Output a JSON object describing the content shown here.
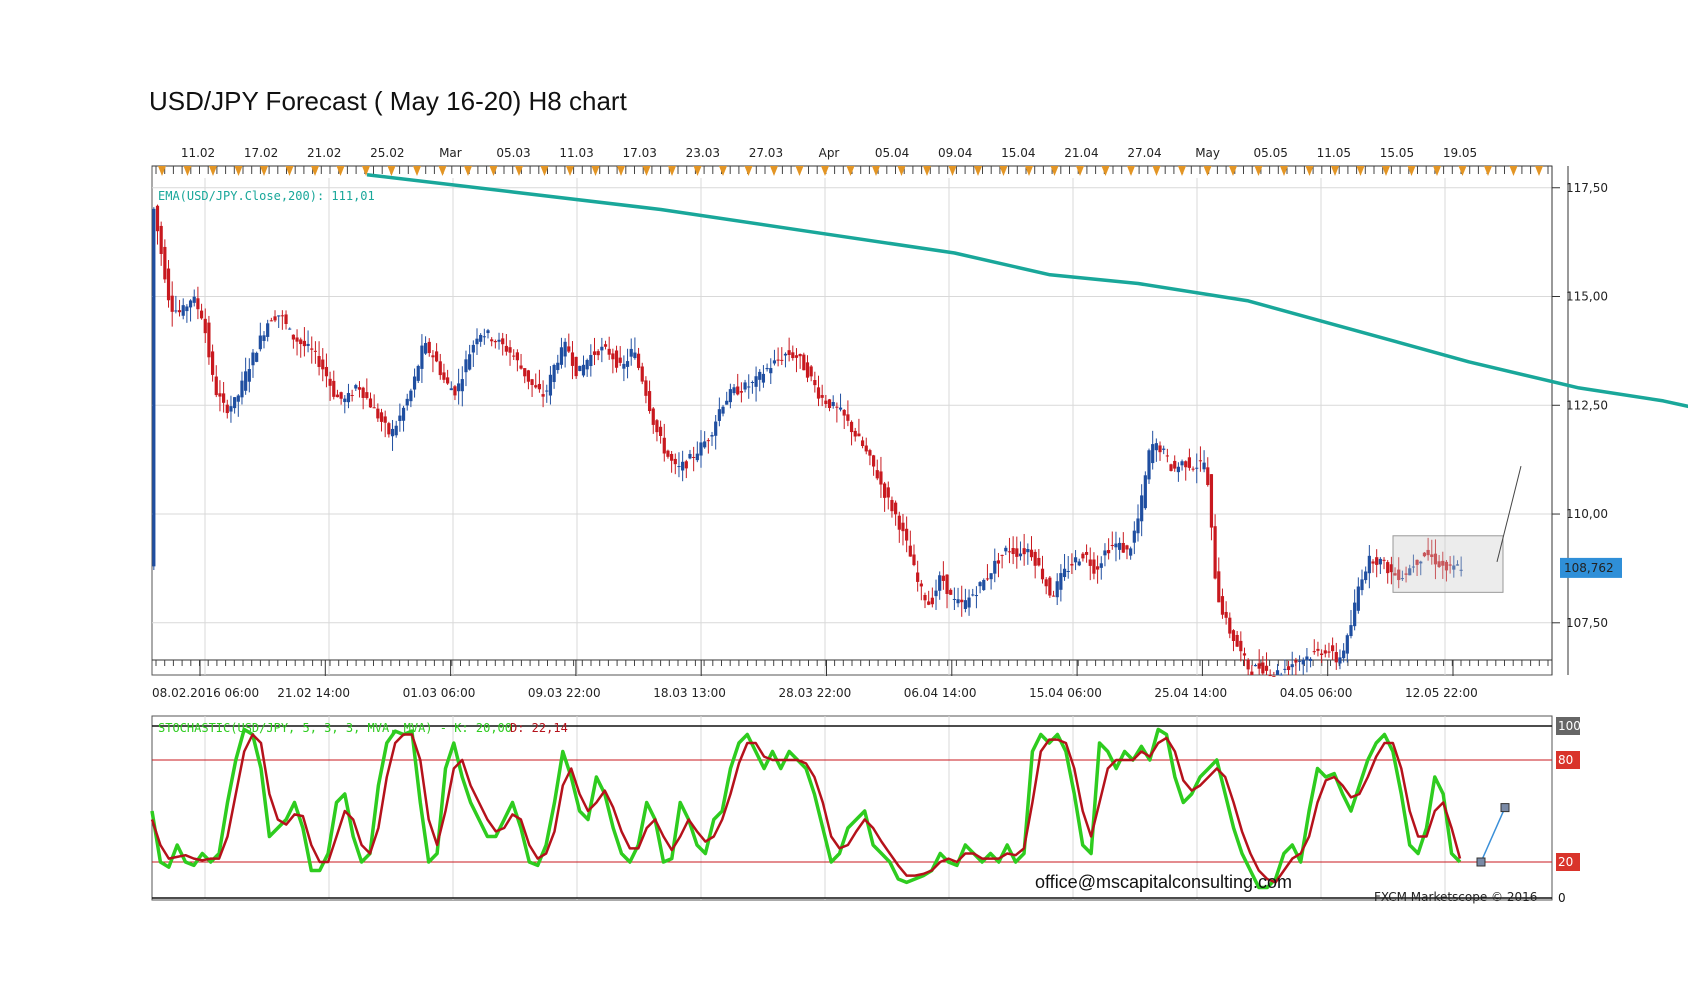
{
  "title": "USD/JPY Forecast ( May 16-20) H8 chart",
  "top_axis_labels": [
    "11.02",
    "17.02",
    "21.02",
    "25.02",
    "Mar",
    "05.03",
    "11.03",
    "17.03",
    "23.03",
    "27.03",
    "Apr",
    "05.04",
    "09.04",
    "15.04",
    "21.04",
    "27.04",
    "May",
    "05.05",
    "11.05",
    "15.05",
    "19.05"
  ],
  "bottom_axis_labels": [
    "08.02.2016 06:00",
    "21.02 14:00",
    "01.03 06:00",
    "09.03 22:00",
    "18.03 13:00",
    "28.03 22:00",
    "06.04 14:00",
    "15.04 06:00",
    "25.04 14:00",
    "04.05 06:00",
    "12.05 22:00"
  ],
  "price_ticks": [
    "117,50",
    "115,00",
    "112,50",
    "110,00",
    "107,50"
  ],
  "current_price": "108,762",
  "ema_label": "EMA(USD/JPY.Close,200): 111,01",
  "stoch_label_main": "STOCHASTIC(USD/JPY, 5, 3, 3, MVA, MVA) - K: 20,00",
  "stoch_label_d": "D: 22,14",
  "stoch_levels": [
    "100",
    "80",
    "20",
    "0"
  ],
  "email": "office@mscapitalconsulting.com",
  "credit": "FXCM Marketscope © 2016",
  "colors": {
    "bull": "#1f4ea0",
    "bear": "#c8191f",
    "ema": "#19a79a",
    "stoch_k": "#2ecc1f",
    "stoch_d": "#b5121b",
    "price_box": "#2f8fd8"
  },
  "chart_data": [
    {
      "type": "candlestick",
      "title": "USD/JPY Forecast ( May 16-20) H8 chart",
      "ylim": [
        106.3,
        118.0
      ],
      "price_path": [
        [
          0,
          117.3
        ],
        [
          3,
          115.8
        ],
        [
          5,
          114.8
        ],
        [
          8,
          114.6
        ],
        [
          11,
          115.0
        ],
        [
          14,
          114.5
        ],
        [
          17,
          112.9
        ],
        [
          20,
          112.4
        ],
        [
          23,
          112.6
        ],
        [
          26,
          113.3
        ],
        [
          29,
          113.9
        ],
        [
          32,
          114.5
        ],
        [
          35,
          114.6
        ],
        [
          38,
          114.1
        ],
        [
          41,
          113.9
        ],
        [
          44,
          113.7
        ],
        [
          47,
          113.3
        ],
        [
          50,
          112.7
        ],
        [
          53,
          112.6
        ],
        [
          56,
          113.0
        ],
        [
          59,
          112.6
        ],
        [
          62,
          112.2
        ],
        [
          65,
          111.8
        ],
        [
          68,
          112.3
        ],
        [
          71,
          112.9
        ],
        [
          74,
          113.9
        ],
        [
          77,
          113.6
        ],
        [
          80,
          113.0
        ],
        [
          83,
          112.8
        ],
        [
          86,
          113.6
        ],
        [
          89,
          114.2
        ],
        [
          92,
          114.1
        ],
        [
          95,
          113.9
        ],
        [
          98,
          113.7
        ],
        [
          101,
          113.3
        ],
        [
          104,
          112.9
        ],
        [
          107,
          112.7
        ],
        [
          110,
          113.5
        ],
        [
          113,
          113.9
        ],
        [
          116,
          113.2
        ],
        [
          119,
          113.6
        ],
        [
          122,
          113.8
        ],
        [
          125,
          113.7
        ],
        [
          128,
          113.3
        ],
        [
          131,
          113.8
        ],
        [
          134,
          113.0
        ],
        [
          137,
          112.0
        ],
        [
          140,
          111.4
        ],
        [
          143,
          111.0
        ],
        [
          146,
          111.2
        ],
        [
          149,
          111.5
        ],
        [
          152,
          111.8
        ],
        [
          155,
          112.5
        ],
        [
          158,
          112.8
        ],
        [
          161,
          112.9
        ],
        [
          164,
          113.0
        ],
        [
          167,
          113.3
        ],
        [
          170,
          113.5
        ],
        [
          173,
          113.7
        ],
        [
          176,
          113.6
        ],
        [
          179,
          113.2
        ],
        [
          182,
          112.7
        ],
        [
          185,
          112.5
        ],
        [
          188,
          112.3
        ],
        [
          191,
          111.9
        ],
        [
          194,
          111.5
        ],
        [
          197,
          111.0
        ],
        [
          200,
          110.4
        ],
        [
          203,
          109.9
        ],
        [
          206,
          109.2
        ],
        [
          209,
          108.3
        ],
        [
          212,
          107.9
        ],
        [
          215,
          108.6
        ],
        [
          218,
          108.0
        ],
        [
          221,
          107.9
        ],
        [
          224,
          108.2
        ],
        [
          227,
          108.5
        ],
        [
          230,
          108.9
        ],
        [
          233,
          109.2
        ],
        [
          236,
          109.1
        ],
        [
          239,
          109.2
        ],
        [
          242,
          108.7
        ],
        [
          245,
          108.1
        ],
        [
          248,
          108.6
        ],
        [
          251,
          108.9
        ],
        [
          254,
          109.1
        ],
        [
          257,
          108.7
        ],
        [
          260,
          109.2
        ],
        [
          263,
          109.3
        ],
        [
          266,
          109.1
        ],
        [
          269,
          110.0
        ],
        [
          272,
          111.6
        ],
        [
          275,
          111.5
        ],
        [
          278,
          111.0
        ],
        [
          281,
          111.2
        ],
        [
          284,
          111.1
        ],
        [
          287,
          111.2
        ],
        [
          290,
          108.2
        ],
        [
          293,
          107.4
        ],
        [
          296,
          106.9
        ],
        [
          299,
          106.4
        ],
        [
          302,
          106.5
        ],
        [
          305,
          106.3
        ],
        [
          308,
          106.4
        ],
        [
          311,
          106.6
        ],
        [
          314,
          106.7
        ],
        [
          317,
          106.8
        ],
        [
          320,
          106.9
        ],
        [
          323,
          106.6
        ],
        [
          326,
          107.2
        ],
        [
          329,
          108.5
        ],
        [
          332,
          109.0
        ],
        [
          335,
          108.9
        ],
        [
          338,
          108.6
        ],
        [
          341,
          108.6
        ],
        [
          344,
          108.9
        ],
        [
          347,
          109.1
        ],
        [
          350,
          108.9
        ],
        [
          353,
          108.7
        ],
        [
          356,
          108.8
        ]
      ],
      "ema_path": [
        [
          0,
          117.8
        ],
        [
          40,
          117.4
        ],
        [
          80,
          117.0
        ],
        [
          120,
          116.5
        ],
        [
          160,
          116.0
        ],
        [
          186,
          115.5
        ],
        [
          210,
          115.3
        ],
        [
          240,
          114.9
        ],
        [
          270,
          114.2
        ],
        [
          300,
          113.5
        ],
        [
          330,
          112.9
        ],
        [
          353,
          112.6
        ],
        [
          380,
          112.1
        ],
        [
          410,
          111.5
        ],
        [
          440,
          111.2
        ],
        [
          458,
          111.01
        ]
      ],
      "forecast_line": [
        [
          108.9,
          109.9
        ],
        [
          109.6,
          111.1
        ]
      ],
      "consolidation_box": [
        108.2,
        109.5
      ]
    },
    {
      "type": "line",
      "title": "STOCHASTIC(USD/JPY, 5, 3, 3, MVA, MVA)",
      "ylim": [
        0,
        100
      ],
      "levels": [
        20,
        80,
        100
      ],
      "k_values": [
        50,
        20,
        17,
        30,
        20,
        18,
        25,
        20,
        25,
        55,
        80,
        98,
        95,
        75,
        35,
        40,
        45,
        55,
        40,
        15,
        15,
        25,
        55,
        60,
        35,
        20,
        25,
        65,
        90,
        97,
        95,
        97,
        55,
        20,
        25,
        75,
        90,
        70,
        55,
        45,
        35,
        35,
        45,
        55,
        40,
        20,
        18,
        30,
        55,
        85,
        70,
        50,
        45,
        70,
        60,
        40,
        25,
        20,
        30,
        55,
        45,
        20,
        22,
        55,
        45,
        30,
        25,
        45,
        50,
        75,
        90,
        95,
        85,
        75,
        85,
        75,
        85,
        80,
        75,
        60,
        40,
        20,
        25,
        40,
        45,
        50,
        30,
        25,
        20,
        10,
        8,
        10,
        12,
        15,
        25,
        20,
        18,
        30,
        25,
        20,
        25,
        20,
        30,
        20,
        25,
        85,
        95,
        90,
        95,
        85,
        60,
        30,
        25,
        90,
        85,
        75,
        85,
        80,
        88,
        80,
        98,
        95,
        70,
        55,
        60,
        70,
        75,
        80,
        60,
        40,
        25,
        15,
        5,
        5,
        10,
        25,
        30,
        20,
        50,
        75,
        70,
        72,
        60,
        50,
        65,
        80,
        90,
        95,
        85,
        60,
        30,
        25,
        40,
        70,
        60,
        25,
        20
      ],
      "d_values": [
        45,
        30,
        22,
        23,
        24,
        22,
        21,
        22,
        22,
        35,
        60,
        85,
        95,
        90,
        60,
        45,
        42,
        48,
        47,
        30,
        20,
        20,
        35,
        50,
        45,
        30,
        25,
        40,
        70,
        90,
        95,
        95,
        80,
        45,
        30,
        50,
        75,
        80,
        65,
        55,
        45,
        38,
        40,
        48,
        45,
        30,
        22,
        25,
        38,
        65,
        75,
        60,
        50,
        55,
        62,
        52,
        38,
        28,
        28,
        40,
        45,
        35,
        27,
        35,
        45,
        38,
        32,
        35,
        45,
        60,
        78,
        90,
        90,
        82,
        80,
        80,
        80,
        80,
        78,
        70,
        55,
        35,
        28,
        30,
        38,
        45,
        40,
        32,
        25,
        18,
        12,
        12,
        13,
        15,
        20,
        22,
        20,
        25,
        25,
        22,
        22,
        22,
        25,
        24,
        28,
        55,
        85,
        92,
        92,
        90,
        75,
        50,
        35,
        55,
        75,
        80,
        80,
        80,
        85,
        82,
        90,
        93,
        85,
        68,
        62,
        65,
        70,
        75,
        70,
        55,
        38,
        25,
        15,
        10,
        8,
        15,
        22,
        25,
        35,
        55,
        68,
        70,
        65,
        58,
        60,
        70,
        82,
        90,
        90,
        75,
        50,
        35,
        35,
        50,
        55,
        40,
        22
      ]
    }
  ]
}
